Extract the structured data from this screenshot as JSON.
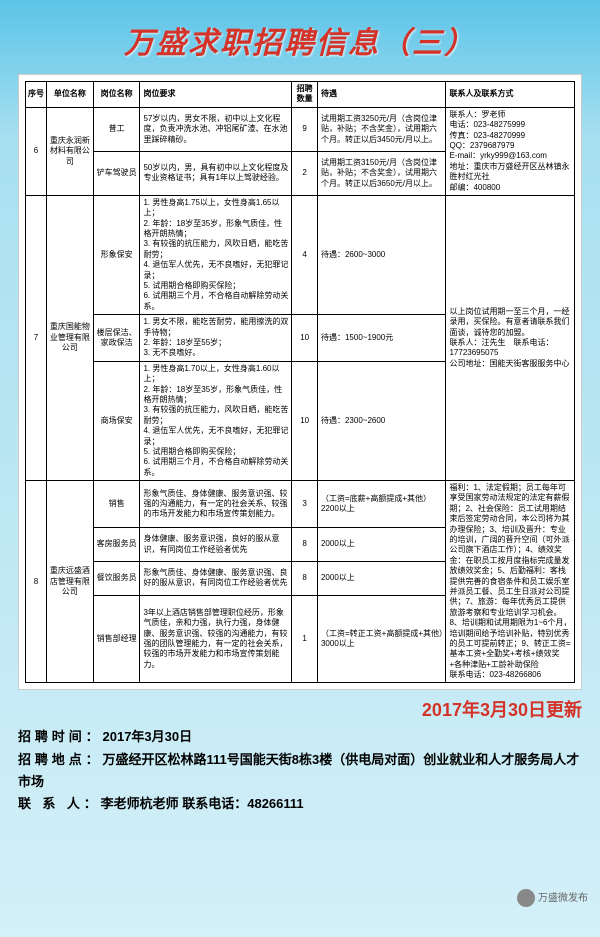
{
  "page_title": "万盛求职招聘信息（三）",
  "update_date": "2017年3月30日更新",
  "footer": {
    "time_label": "招聘时间：",
    "time_value": "2017年3月30日",
    "addr_label": "招聘地点：",
    "addr_value": "万盛经开区松林路111号国能天街8栋3楼（供电局对面）创业就业和人才服务局人才市场",
    "contact_label": "联 系 人：",
    "contact_value": "李老师杭老师 联系电话：48266111"
  },
  "wechat_tag": "万盛微发布",
  "columns": {
    "seq": "序号",
    "company": "单位名称",
    "position": "岗位名称",
    "requirement": "岗位要求",
    "count": "招聘数量",
    "treatment": "待遇",
    "contact": "联系人及联系方式"
  },
  "rows": [
    {
      "seq": "6",
      "company": "重庆永润新材料有限公司",
      "contact": "联系人：罗老师\n电话：023-48275999\n传真：023-48270999\nQQ：2379687979\nE-mail：yrky999@163.com\n地址：重庆市万盛经开区丛林镇永胜村红光社\n邮编：400800",
      "positions": [
        {
          "pos": "普工",
          "req": "57岁以内，男女不限，初中以上文化程度，负责冲洗水池、冲铝尾矿渣、在水池里踩碎精砂。",
          "count": "9",
          "pay": "试用期工资3250元/月（含岗位津贴，补贴；不含奖金），试用期六个月。转正以后3450元/月以上。"
        },
        {
          "pos": "铲车驾驶员",
          "req": "50岁以内，男，具有初中以上文化程度及专业资格证书；具有1年以上驾驶经验。",
          "count": "2",
          "pay": "试用期工资3150元/月（含岗位津贴，补贴；不含奖金），试用期六个月。转正以后3650元/月以上。"
        }
      ]
    },
    {
      "seq": "7",
      "company": "重庆国能物业管理有限公司",
      "contact": "以上岗位试用期一至三个月，一经录用，买保险。有意者请联系我们面谈，诚待您的加盟。\n联系人：汪先生　联系电话：17723695075\n公司地址：国能天街客服服务中心",
      "positions": [
        {
          "pos": "形象保安",
          "req": "1. 男性身高1.75以上，女性身高1.65以上；\n2. 年龄：18岁至35岁，形象气质佳，性格开朗热情；\n3. 有较强的抗压能力，风吹日晒，能吃苦耐劳；\n4. 退伍军人优先，无不良嗜好，无犯罪记录；\n5. 试用期合格即购买保险；\n6. 试用期三个月，不合格自动解除劳动关系。",
          "count": "4",
          "pay": "待遇：2600~3000"
        },
        {
          "pos": "楼层保洁、家政保洁",
          "req": "1. 男女不限，能吃苦耐劳，能用擦洗的双手待物；\n2. 年龄：18岁至55岁；\n3. 无不良嗜好。",
          "count": "10",
          "pay": "待遇：1500~1900元"
        },
        {
          "pos": "商场保安",
          "req": "1. 男性身高1.70以上，女性身高1.60以上；\n2. 年龄：18岁至35岁，形象气质佳，性格开朗热情；\n3. 有较强的抗压能力，风吹日晒，能吃苦耐劳；\n4. 退伍军人优先，无不良嗜好，无犯罪记录；\n5. 试用期合格即购买保险；\n6. 试用期三个月，不合格自动解除劳动关系。",
          "count": "10",
          "pay": "待遇：2300~2600"
        }
      ]
    },
    {
      "seq": "8",
      "company": "重庆远盛酒店管理有限公司",
      "contact": "福利：1、法定假期；员工每年可享受国家劳动法规定的法定有薪假期；2、社会保险：员工试用期结束后签定劳动合同，本公司将为其办理保险；3、培训及晋升：专业的培训，广阔的晋升空间（可外派公司旗下酒店工作）；4、绩效奖金：在职员工按月度指标完成量发放绩效奖金；5、后勤福利：客栈提供完善的食宿条件和员工娱乐室并派员工餐、员工生日派对公司提供；7、旅游：每年优秀员工提供旅游考察和专业培训学习机会。8、培训期和试用期限为1~6个月，培训期间给予培训补贴，特别优秀的员工可提前转正；9、转正工资=基本工资+全勤奖+考核+绩效奖+各种津贴+工龄补助保险\n联系电话：023-48266806",
      "positions": [
        {
          "pos": "销售",
          "req": "形象气质佳、身体健康、服务意识强、较强的沟通能力，有一定的社会关系、较强的市场开发能力和市场宣传策划能力。",
          "count": "3",
          "pay": "（工资=底薪+高额提成+其他）2200以上"
        },
        {
          "pos": "客房服务员",
          "req": "身体健康、服务意识强，良好的服从意识，有同岗位工作经验者优先",
          "count": "8",
          "pay": "2000以上"
        },
        {
          "pos": "餐饮服务员",
          "req": "形象气质佳、身体健康、服务意识强、良好的服从意识，有同岗位工作经验者优先",
          "count": "8",
          "pay": "2000以上"
        },
        {
          "pos": "销售部经理",
          "req": "3年以上酒店销售部管理职位经历，形象气质佳，亲和力强，执行力强，身体健康、服务意识强、较强的沟通能力，有较强的团队管理能力，有一定的社会关系，较强的市场开发能力和市场宣传策划能力。",
          "count": "1",
          "pay": "（工资=转正工资+高额提成+其他）3000以上"
        }
      ]
    }
  ],
  "styling": {
    "header_color": "#d4332a",
    "bg_gradient": [
      "#5cc4e8",
      "#a8e0f0",
      "#d4f0f8"
    ],
    "table_border": "#000000",
    "table_bg": "#ffffff",
    "font_size_table": 8,
    "font_size_header": 30
  }
}
